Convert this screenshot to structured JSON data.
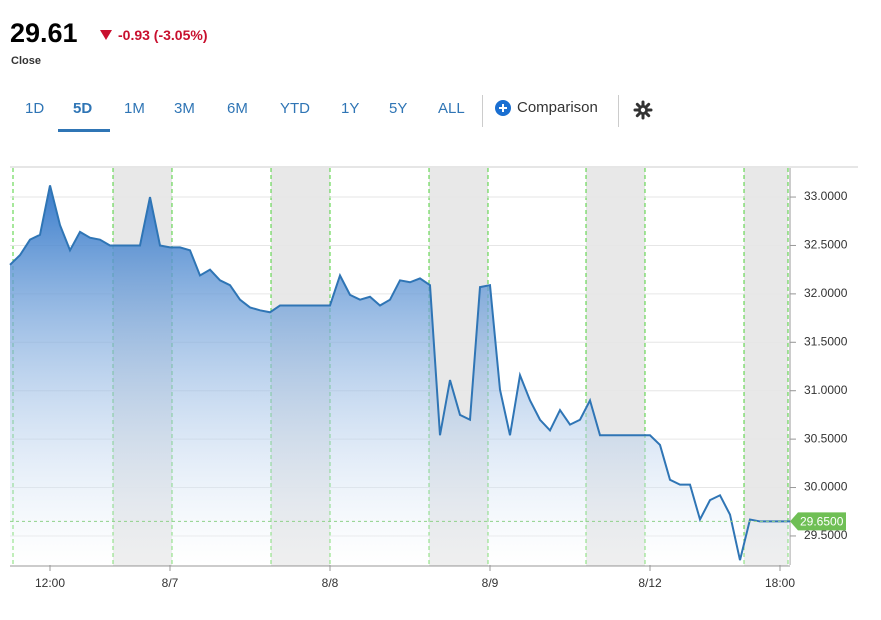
{
  "header": {
    "price": "29.61",
    "change": "-0.93 (-3.05%)",
    "status": "Close",
    "tabs": [
      "1D",
      "5D",
      "1M",
      "3M",
      "6M",
      "YTD",
      "1Y",
      "5Y",
      "ALL"
    ],
    "selected_tab": "5D",
    "comparison": "Comparison"
  },
  "chart_data": {
    "type": "area",
    "color": "#2f75b5",
    "categories": [
      null,
      null,
      null,
      null,
      "12:00",
      null,
      null,
      null,
      null,
      null,
      null,
      null,
      null,
      null,
      null,
      null,
      "8/7",
      null,
      null,
      null,
      null,
      null,
      null,
      null,
      null,
      null,
      null,
      null,
      null,
      null,
      null,
      null,
      "8/8",
      null,
      null,
      null,
      null,
      null,
      null,
      null,
      null,
      null,
      null,
      null,
      null,
      null,
      null,
      null,
      "8/9",
      null,
      null,
      null,
      null,
      null,
      null,
      null,
      null,
      null,
      null,
      null,
      null,
      null,
      null,
      null,
      "8/12",
      null,
      null,
      null,
      null,
      null,
      null,
      null,
      null,
      null,
      null,
      null,
      null,
      "18:00",
      null
    ],
    "values": [
      32.3,
      32.4,
      32.56,
      32.61,
      33.12,
      32.71,
      32.45,
      32.64,
      32.58,
      32.56,
      32.5,
      32.5,
      32.5,
      32.5,
      33.0,
      32.5,
      32.48,
      32.48,
      32.45,
      32.19,
      32.25,
      32.14,
      32.09,
      31.94,
      31.86,
      31.83,
      31.81,
      31.88,
      31.88,
      31.88,
      31.88,
      31.88,
      31.88,
      32.19,
      31.99,
      31.94,
      31.97,
      31.88,
      31.94,
      32.14,
      32.12,
      32.16,
      32.09,
      30.54,
      31.11,
      30.75,
      30.7,
      32.07,
      32.09,
      31.01,
      30.54,
      31.16,
      30.9,
      30.7,
      30.59,
      30.8,
      30.65,
      30.7,
      30.9,
      30.54,
      30.54,
      30.54,
      30.54,
      30.54,
      30.54,
      30.44,
      30.08,
      30.03,
      30.03,
      29.67,
      29.87,
      29.92,
      29.72,
      29.25,
      29.67,
      29.65,
      29.65,
      29.65,
      29.65
    ],
    "ylim": [
      29.2,
      33.3
    ],
    "yticks": [
      {
        "value": 29.5,
        "label": "29.5000"
      },
      {
        "value": 30,
        "label": "30.0000"
      },
      {
        "value": 30.5,
        "label": "30.5000"
      },
      {
        "value": 31,
        "label": "31.0000"
      },
      {
        "value": 31.5,
        "label": "31.5000"
      },
      {
        "value": 32,
        "label": "32.0000"
      },
      {
        "value": 32.5,
        "label": "32.5000"
      },
      {
        "value": 33,
        "label": "33.0000"
      }
    ],
    "grid": true,
    "last_value": {
      "value": 29.65,
      "label": "29.6500"
    }
  }
}
